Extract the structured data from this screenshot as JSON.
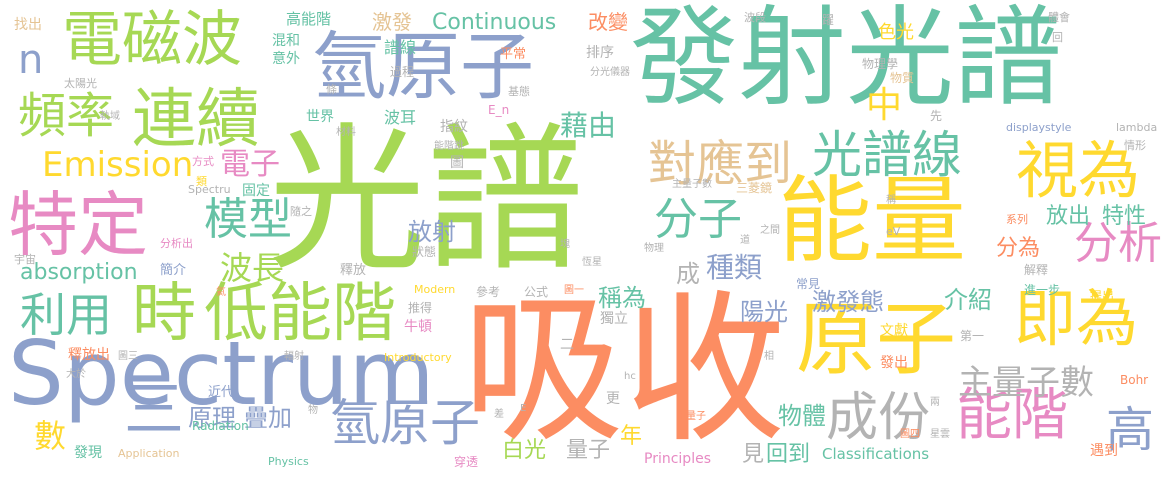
{
  "words": {
    "guangpu": "光譜",
    "xishou": "吸收",
    "fashe_guangpu": "發射光譜",
    "spectrum": "Spectrum",
    "nengliang": "能量",
    "yuanzi": "原子",
    "qing_yuanzi_top": "氫原子",
    "dianci_bo": "電磁波",
    "lianxu": "連續",
    "tedin": "特定",
    "pinlv": "頻率",
    "shiwei": "視為",
    "jiwei": "即為",
    "shi": "時",
    "di_nengjie": "低能階",
    "liyong": "利用",
    "nengjie": "能階",
    "guangpuxian": "光譜線",
    "qing_yuanzi_bottom": "氫原子",
    "chengfen": "成份",
    "duiyingdao": "對應到",
    "moxing": "模型",
    "fenxi": "分析",
    "fenzi": "分子",
    "emission": "Emission",
    "continuous": "Continuous",
    "absorption": "absorption",
    "boxhang": "波長",
    "dianzi": "電子",
    "zhu_liangzi": "主量子數",
    "gao": "高",
    "n": "n",
    "zhong": "中",
    "jieyou": "藉由",
    "fashe": "放射",
    "zhonglei": "種類",
    "chengwei": "稱為",
    "jifa_tai": "激發態",
    "jieshao": "介紹",
    "yangguang": "陽光",
    "fenwei": "分為",
    "fangchu": "放出",
    "texing": "特性",
    "wuti": "物體",
    "yuanli": "原理",
    "dieja": "疊加",
    "shu": "數",
    "san": "三",
    "baiguang": "白光",
    "liangzi": "量子",
    "huidao": "回到",
    "classifications": "Classifications",
    "principles": "Principles",
    "jian": "見",
    "nian": "年",
    "cheng": "成",
    "gaonengjie": "高能階",
    "hunhe": "混和",
    "yiwai": "意外",
    "jifa": "激發",
    "puxian": "譜線",
    "gaibian": "改變",
    "sese": "色光",
    "zhaochu": "找出",
    "taiyangguang": "太陽光",
    "guocheng": "過程",
    "pingchang": "平常",
    "paixu": "排序",
    "fenguang_yiqi": "分光儀器",
    "wulixue": "物理學",
    "wuzhi": "物質",
    "xian": "先",
    "jiti": "基態",
    "E_n": "E_n",
    "shijie": "世界",
    "boer": "波耳",
    "zhiwen": "指紋",
    "cailiao": "材料",
    "guiyu": "軌域",
    "nengjie_tiao": "能階跳",
    "tu": "圖",
    "displaystyle": "displaystyle",
    "lambda": "lambda",
    "qingxing": "情形",
    "fangshi": "方式",
    "lei": "類",
    "zhuliangzishu": "主量子數",
    "sanlengjing": "三菱鏡",
    "gudin": "固定",
    "spectru": "Spectru",
    "suizhi": "隨之",
    "chen": "稱",
    "xilie": "系列",
    "fenxichu": "分析出",
    "zhijian": "之間",
    "eV": "eV",
    "wuli": "物理",
    "dao": "道",
    "hengxing": "恆星",
    "yuzhou": "宇宙",
    "zhuangtai": "狀態",
    "jianjie": "簡介",
    "shifang": "釋放",
    "jieshi": "解釋",
    "jinyibu": "進一步",
    "tichu": "提出",
    "changjian": "常見",
    "modern": "Modern",
    "tuiyong": "推得",
    "dihuo": "氦",
    "niudun": "牛頓",
    "duli": "獨立",
    "cankao": "參考",
    "gongshi": "公式",
    "tuyi": "圖一",
    "wenxian": "文獻",
    "diyi": "第一",
    "shifangchu": "釋放出",
    "tusan": "圖三",
    "fushe": "輻射",
    "introductory": "Introductory",
    "xiang": "相",
    "fasheng": "發出",
    "bohr": "Bohr",
    "daiyu": "大於",
    "jindai": "近代",
    "hc": "hc",
    "radiation": "Radiation",
    "wu": "物",
    "E": "E",
    "cha": "差",
    "zhuliangzi": "主量子",
    "liang": "兩",
    "faxian": "發現",
    "application": "Application",
    "physics": "Physics",
    "chuantou": "穿透",
    "tusi": "圖四",
    "xingyun": "星雲",
    "yuedao": "遇到",
    "gen": "更",
    "boduan": "波段",
    "yue": "躍",
    "tihui": "體會",
    "er": "二",
    "hui": "回",
    "tiao": "條",
    "kuai": "塊"
  },
  "colors": {
    "c1": "#8da0cb",
    "c2": "#a6d854",
    "c3": "#fc8d62",
    "c4": "#66c2a5",
    "c5": "#e78ac3",
    "c6": "#ffd92f",
    "c7": "#e5c494",
    "c8": "#b3b3b3"
  }
}
